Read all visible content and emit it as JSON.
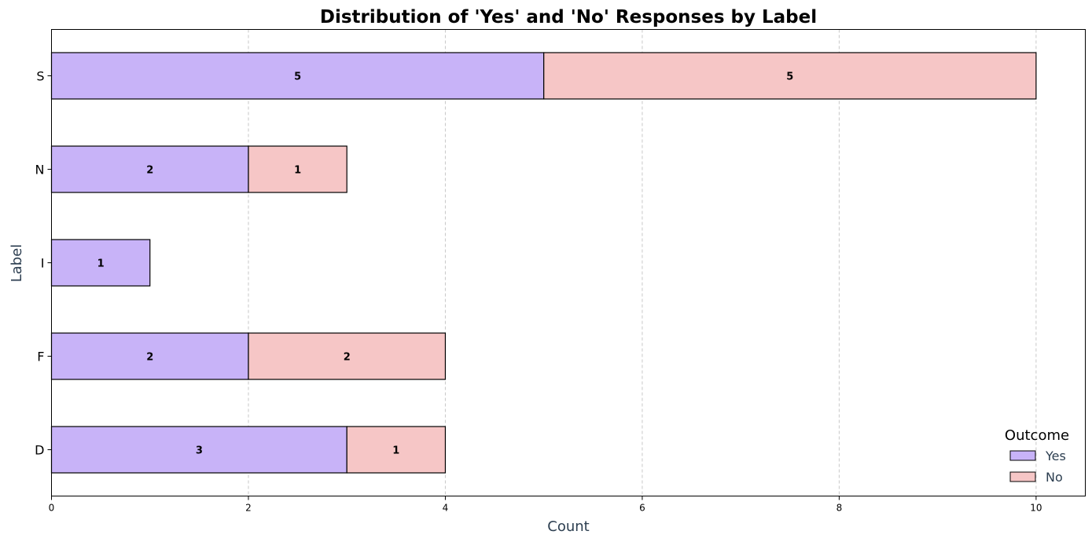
{
  "chart_data": {
    "type": "bar",
    "orientation": "horizontal",
    "stacked": true,
    "title": "Distribution of 'Yes' and 'No' Responses by Label",
    "xlabel": "Count",
    "ylabel": "Label",
    "categories": [
      "S",
      "N",
      "I",
      "F",
      "D"
    ],
    "series": [
      {
        "name": "Yes",
        "color": "#c8b3f8",
        "values": [
          5,
          2,
          1,
          2,
          3
        ]
      },
      {
        "name": "No",
        "color": "#f6c6c6",
        "values": [
          5,
          1,
          0,
          2,
          1
        ]
      }
    ],
    "xlim": [
      0,
      10.5
    ],
    "xticks": [
      0,
      2,
      4,
      6,
      8,
      10
    ],
    "grid": "x-dashed",
    "legend": {
      "title": "Outcome",
      "placement": "bottom-right"
    }
  }
}
